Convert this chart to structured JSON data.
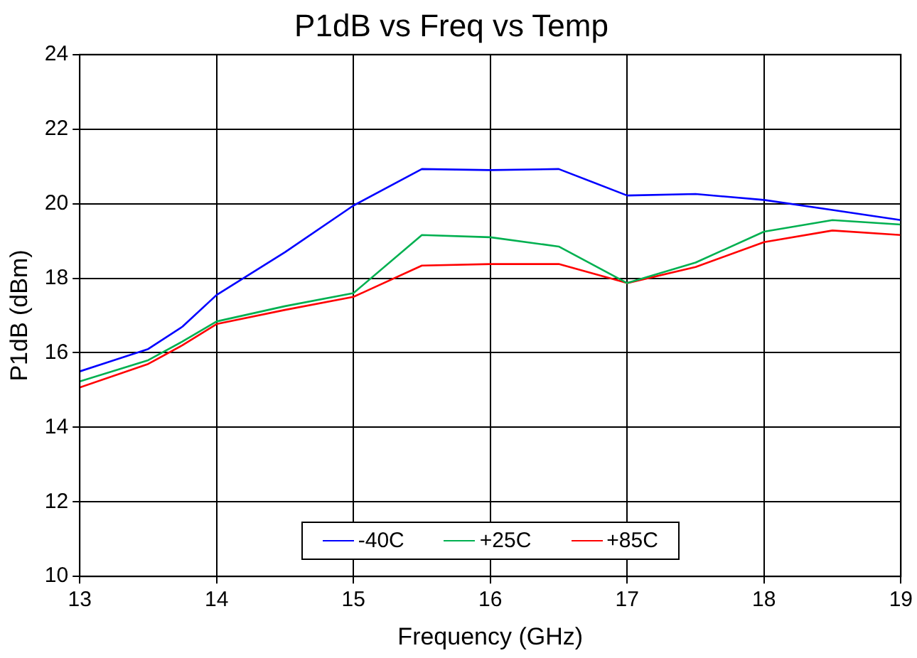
{
  "chart_data": {
    "type": "line",
    "title": "P1dB vs Freq vs Temp",
    "xlabel": "Frequency (GHz)",
    "ylabel": "P1dB (dBm)",
    "x": [
      13,
      13.5,
      13.75,
      14,
      14.5,
      15,
      15.5,
      16,
      16.5,
      17,
      17.5,
      18,
      18.5,
      19
    ],
    "series": [
      {
        "name": "-40C",
        "color": "#0000ff",
        "values": [
          15.5,
          16.1,
          16.7,
          17.55,
          18.7,
          19.95,
          20.93,
          20.9,
          20.93,
          20.22,
          20.26,
          20.1,
          19.83,
          19.56
        ]
      },
      {
        "name": "+25C",
        "color": "#00b050",
        "values": [
          15.23,
          15.8,
          16.3,
          16.84,
          17.25,
          17.6,
          19.16,
          19.1,
          18.85,
          17.87,
          18.42,
          19.25,
          19.56,
          19.44
        ]
      },
      {
        "name": "+85C",
        "color": "#ff0000",
        "values": [
          15.07,
          15.7,
          16.2,
          16.77,
          17.15,
          17.5,
          18.34,
          18.38,
          18.38,
          17.87,
          18.3,
          18.97,
          19.28,
          19.16
        ]
      }
    ],
    "xlim": [
      13,
      19
    ],
    "xticks": [
      13,
      14,
      15,
      16,
      17,
      18,
      19
    ],
    "ylim": [
      10,
      24
    ],
    "yticks": [
      10,
      12,
      14,
      16,
      18,
      20,
      22,
      24
    ],
    "grid": true,
    "legend": "bottom",
    "marker": "none",
    "line_style": "solid"
  }
}
